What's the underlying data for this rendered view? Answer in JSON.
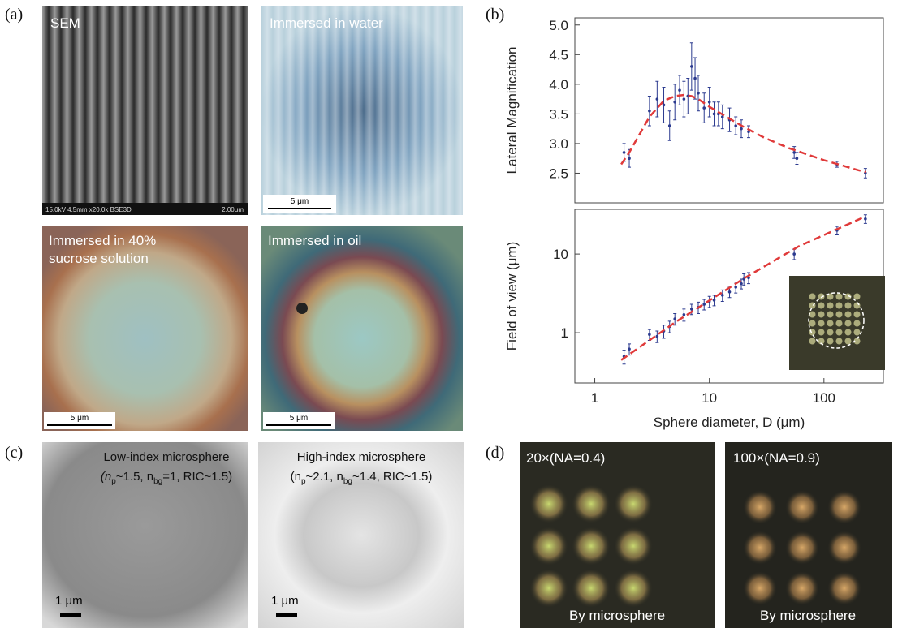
{
  "panel_labels": [
    "(a)",
    "(b)",
    "(c)",
    "(d)"
  ],
  "panel_a": {
    "images": [
      {
        "caption": "SEM",
        "info": "15.0kV 4.5mm x20.0k BSE3D",
        "scale": "2.00μm"
      },
      {
        "caption": "Immersed in water",
        "scale": "5 μm"
      },
      {
        "caption_lines": [
          "Immersed in 40%",
          "sucrose solution"
        ],
        "scale": "5 μm"
      },
      {
        "caption": "Immersed in oil",
        "scale": "5 μm"
      }
    ]
  },
  "chart_data": [
    {
      "type": "scatter",
      "y_label": "Lateral Magnification",
      "xlog": true,
      "ylog": false,
      "xlim": [
        0.67,
        330
      ],
      "ylim": [
        2.0,
        5.12
      ],
      "yticks": [
        2.5,
        {
          "value": 3,
          "label": "3.0"
        },
        3.5,
        {
          "value": 4,
          "label": "4.0"
        },
        4.5,
        {
          "value": 5,
          "label": "5.0"
        }
      ],
      "series": [
        {
          "kind": "points",
          "color": "#2b3a8f",
          "x": [
            1.8,
            2,
            3,
            3.5,
            4,
            4.5,
            5,
            5.5,
            6,
            6.5,
            7,
            7.5,
            8,
            9,
            10,
            11,
            12,
            13,
            15,
            17,
            19,
            22,
            55,
            58,
            130,
            230
          ],
          "values": [
            2.85,
            2.75,
            3.55,
            3.75,
            3.65,
            3.3,
            3.7,
            3.9,
            3.75,
            3.8,
            4.3,
            4.1,
            3.85,
            3.6,
            3.7,
            3.5,
            3.5,
            3.45,
            3.4,
            3.3,
            3.25,
            3.2,
            2.85,
            2.75,
            2.65,
            2.5
          ],
          "errors": [
            0.15,
            0.15,
            0.25,
            0.3,
            0.3,
            0.25,
            0.3,
            0.25,
            0.3,
            0.3,
            0.4,
            0.35,
            0.3,
            0.25,
            0.25,
            0.2,
            0.2,
            0.2,
            0.2,
            0.15,
            0.15,
            0.1,
            0.1,
            0.1,
            0.05,
            0.08
          ]
        },
        {
          "kind": "line",
          "style": "dashed",
          "color": "#e03a3a",
          "x": [
            1.7,
            2,
            3,
            4,
            5,
            6,
            7,
            8,
            10,
            15,
            20,
            30,
            50,
            100,
            200,
            230
          ],
          "values": [
            2.65,
            2.85,
            3.45,
            3.72,
            3.8,
            3.82,
            3.8,
            3.75,
            3.62,
            3.42,
            3.28,
            3.1,
            2.92,
            2.72,
            2.55,
            2.52
          ]
        }
      ]
    },
    {
      "type": "scatter",
      "y_label": "Field of view (μm)",
      "x_label": "Sphere diameter, D (μm)",
      "xlog": true,
      "ylog": true,
      "xlim": [
        0.67,
        330
      ],
      "ylim": [
        0.23,
        37
      ],
      "xticks": [
        1,
        10,
        100
      ],
      "yticks": [
        1,
        10
      ],
      "series": [
        {
          "kind": "points",
          "color": "#2b3a8f",
          "x": [
            1.8,
            2,
            3,
            3.5,
            4,
            4.5,
            5,
            6,
            7,
            8,
            9,
            10,
            11,
            13,
            15,
            17,
            19,
            20,
            22,
            55,
            130,
            230
          ],
          "values": [
            0.5,
            0.62,
            0.95,
            0.9,
            1.05,
            1.2,
            1.5,
            1.7,
            2,
            2.1,
            2.3,
            2.5,
            2.6,
            3,
            3.3,
            3.8,
            4.2,
            4.8,
            5,
            10,
            20,
            28
          ],
          "errors": [
            0.1,
            0.1,
            0.15,
            0.15,
            0.2,
            0.2,
            0.25,
            0.3,
            0.3,
            0.35,
            0.35,
            0.4,
            0.4,
            0.5,
            0.5,
            0.6,
            0.6,
            0.8,
            0.8,
            1.5,
            2.5,
            3.5
          ]
        },
        {
          "kind": "line",
          "style": "dashed",
          "color": "#e03a3a",
          "x": [
            1.7,
            5,
            20,
            60,
            230
          ],
          "values": [
            0.45,
            1.35,
            4.9,
            12.5,
            30
          ]
        }
      ]
    }
  ],
  "panel_c": {
    "images": [
      {
        "title": "Low-index microsphere",
        "params": [
          "(n",
          "p",
          "~1.5, n",
          "bg",
          "=1, RIC~1.5)"
        ],
        "scale": "1 μm"
      },
      {
        "title": "High-index microsphere",
        "params": [
          "(n",
          "p",
          "~2.1, n",
          "bg",
          "~1.4, RIC~1.5)"
        ],
        "scale": "1 μm"
      }
    ]
  },
  "panel_d": {
    "images": [
      {
        "objective": "20×(NA=0.4)",
        "caption": "By microsphere"
      },
      {
        "objective": "100×(NA=0.9)",
        "caption": "By microsphere"
      }
    ]
  }
}
